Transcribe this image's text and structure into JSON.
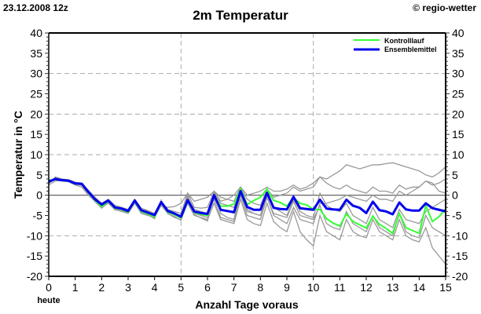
{
  "header": {
    "run": "23.12.2008 12z",
    "title": "2m Temperatur",
    "copyright": "© regio-wetter"
  },
  "chart_data": {
    "type": "line",
    "title": "2m Temperatur",
    "xlabel": "Anzahl Tage voraus",
    "x_start_label": "heute",
    "ylabel": "Temperatur in °C",
    "xlim": [
      0,
      15
    ],
    "ylim": [
      -20,
      40
    ],
    "x_ticks": [
      0,
      1,
      2,
      3,
      4,
      5,
      6,
      7,
      8,
      9,
      10,
      11,
      12,
      13,
      14,
      15
    ],
    "y_ticks": [
      -20,
      -15,
      -10,
      -5,
      0,
      5,
      10,
      15,
      20,
      25,
      30,
      35,
      40
    ],
    "x_grid": [
      5,
      10
    ],
    "y_grid": [
      -10,
      10,
      20,
      30
    ],
    "x_step_days": 0.25,
    "legend_position": "top-right",
    "colors": {
      "control": "#33ff33",
      "mean": "#0000ee",
      "members": "#999999"
    },
    "series": [
      {
        "name": "Kontrolllauf",
        "role": "control",
        "values": [
          3.6,
          4,
          3.7,
          3.6,
          2.9,
          2.8,
          0.6,
          -1.2,
          -2.8,
          -1.5,
          -3.2,
          -3.5,
          -4.2,
          -1.5,
          -4,
          -4.6,
          -5.3,
          -1.8,
          -4.2,
          -4.8,
          -5.6,
          -1.5,
          -4.2,
          -4.7,
          -5,
          0,
          -2.7,
          -2.7,
          -2.2,
          1.5,
          -2.3,
          -1.3,
          -0.5,
          1.5,
          -1.3,
          -1.8,
          -2.7,
          -0.6,
          -2,
          -2.4,
          -3.5,
          -3.5,
          -5.8,
          -6.9,
          -7.6,
          -4.6,
          -6.5,
          -7.3,
          -8.1,
          -5.2,
          -7.2,
          -8.2,
          -9.4,
          -4.5,
          -8,
          -8.7,
          -9.4,
          -2.6,
          -6.5,
          -5.3,
          -3.4
        ]
      },
      {
        "name": "Ensemblemittel",
        "role": "mean",
        "values": [
          3.3,
          4,
          3.7,
          3.6,
          2.9,
          2.8,
          0.8,
          -1,
          -2.3,
          -1.3,
          -3,
          -3.3,
          -3.9,
          -1.3,
          -3.7,
          -4.3,
          -4.9,
          -1.7,
          -3.9,
          -4.5,
          -5.3,
          -1.2,
          -4,
          -4.4,
          -4.6,
          0,
          -3.6,
          -3.9,
          -4.2,
          1,
          -2.9,
          -3.6,
          -3.6,
          0.6,
          -3.1,
          -3.4,
          -3.5,
          -0.4,
          -3.2,
          -3.4,
          -3.6,
          -1.1,
          -3.3,
          -3.5,
          -3.6,
          -1.1,
          -2.6,
          -3.1,
          -4.4,
          -1.6,
          -3.7,
          -4,
          -4.7,
          -1.8,
          -3.5,
          -3.8,
          -3.8,
          -2,
          -3.2,
          -3.6,
          -4
        ]
      }
    ],
    "members": [
      [
        2.8,
        4.5,
        4,
        3.8,
        3.2,
        3,
        1.2,
        -0.5,
        -2,
        -1,
        -2.5,
        -3,
        -3.5,
        -1,
        -3.2,
        -3.8,
        -4.5,
        -1.5,
        -3.5,
        -4,
        -4.5,
        0.5,
        -3,
        -3.2,
        -3,
        1,
        -1.5,
        -1,
        0,
        2,
        0,
        0.5,
        1,
        2,
        1,
        1,
        1.5,
        2.5,
        1.5,
        2,
        3,
        4.5,
        4,
        5,
        6,
        7.5,
        7,
        6.5,
        7,
        7.5,
        7.5,
        7.8,
        8,
        7.5,
        7,
        6.5,
        6,
        5,
        4.5,
        5.5,
        7
      ],
      [
        3.5,
        3.8,
        3.5,
        3.3,
        2.5,
        2,
        0,
        -1.5,
        -3,
        -2,
        -3.5,
        -4,
        -4.5,
        -2,
        -4.5,
        -5,
        -5.5,
        -2.5,
        -4.5,
        -5.5,
        -6,
        -2,
        -5,
        -5.5,
        -6,
        -2,
        -6,
        -6.5,
        -7,
        -1,
        -6,
        -7,
        -7.5,
        -2,
        -6.5,
        -8,
        -9,
        -4,
        -9,
        -11,
        -12.5,
        -5,
        -9,
        -10,
        -11,
        -6,
        -9,
        -10,
        -10.5,
        -6,
        -9,
        -10,
        -11,
        -6,
        -10,
        -11,
        -11.5,
        -8,
        -13,
        -15,
        -17
      ],
      [
        3,
        4.2,
        3.9,
        3.7,
        3,
        2.5,
        0.5,
        -1.2,
        -2.5,
        -1.5,
        -3.2,
        -3.5,
        -4,
        -1.5,
        -3.8,
        -4.5,
        -5,
        -2,
        -4,
        -4.6,
        -5,
        -0.5,
        -3.5,
        -4,
        -4.5,
        0.5,
        -2,
        -2.5,
        -3,
        0.5,
        -4,
        -4.5,
        -5,
        -0.5,
        -5,
        -6,
        -7,
        -3,
        -6,
        -6.5,
        -7,
        -2,
        -2,
        -1.5,
        -1,
        0,
        -0.5,
        -1,
        -1.5,
        0,
        -1,
        -1,
        -1.5,
        1,
        0,
        1,
        2,
        3.5,
        3,
        1,
        0.5
      ],
      [
        2.5,
        3.5,
        3.6,
        3.5,
        2.7,
        2.5,
        1,
        -0.8,
        -2.2,
        -1.5,
        -2.8,
        -3.3,
        -3.7,
        -1.2,
        -3.5,
        -4,
        -4.5,
        -2.5,
        -3,
        -2.8,
        -2,
        0.5,
        -1.5,
        -1,
        -0.5,
        1,
        -0.5,
        -1,
        -1.5,
        2,
        -1,
        -2,
        -2.5,
        1.5,
        -0.5,
        0,
        0.5,
        2,
        1,
        1.5,
        2,
        4.5,
        3,
        2,
        1.5,
        2.5,
        1.5,
        1,
        0.5,
        2,
        1,
        1,
        0.5,
        2.5,
        1.5,
        2,
        2,
        3.5,
        2.5,
        3,
        4
      ],
      [
        3.8,
        3.9,
        3.6,
        3.4,
        2.6,
        2.7,
        0.5,
        -1.4,
        -2.6,
        -1.4,
        -3.3,
        -3.6,
        -4.2,
        -1.6,
        -4,
        -4.6,
        -5.2,
        -1.8,
        -4.2,
        -4.8,
        -5.6,
        -1.5,
        -4.5,
        -5,
        -5.5,
        -1,
        -5.5,
        -6,
        -6.5,
        0,
        -5,
        -5.5,
        -6,
        -0.5,
        -4.5,
        -5,
        -5.5,
        -1.5,
        -5,
        -5.5,
        -6,
        -2.5,
        -7,
        -8,
        -8.5,
        -4,
        -7,
        -8,
        -9,
        -5,
        -8,
        -9,
        -10,
        -4.5,
        -9,
        -10,
        -10.5,
        -5,
        -8,
        -9,
        -10
      ],
      [
        3.2,
        4.3,
        3.8,
        3.5,
        2.8,
        2.4,
        0.2,
        -1.6,
        -3.2,
        -1.8,
        -3.6,
        -3.9,
        -4.4,
        -1,
        -4.2,
        -4.8,
        -5.8,
        -1.2,
        -4.6,
        -5.2,
        -6.2,
        0,
        -4.8,
        -5.6,
        -6.4,
        1,
        -4.5,
        -5.5,
        -6,
        1.5,
        -3.5,
        -4.5,
        -5,
        0.5,
        -3,
        -4,
        -5,
        -1,
        -4,
        -5,
        -5.5,
        0.5,
        -2.5,
        -3.5,
        -4,
        -2,
        -5,
        -6,
        -7,
        -3,
        -6,
        -7,
        -8,
        -3.5,
        -6,
        -6.5,
        -7,
        -4,
        -3,
        -2,
        -1
      ]
    ]
  }
}
